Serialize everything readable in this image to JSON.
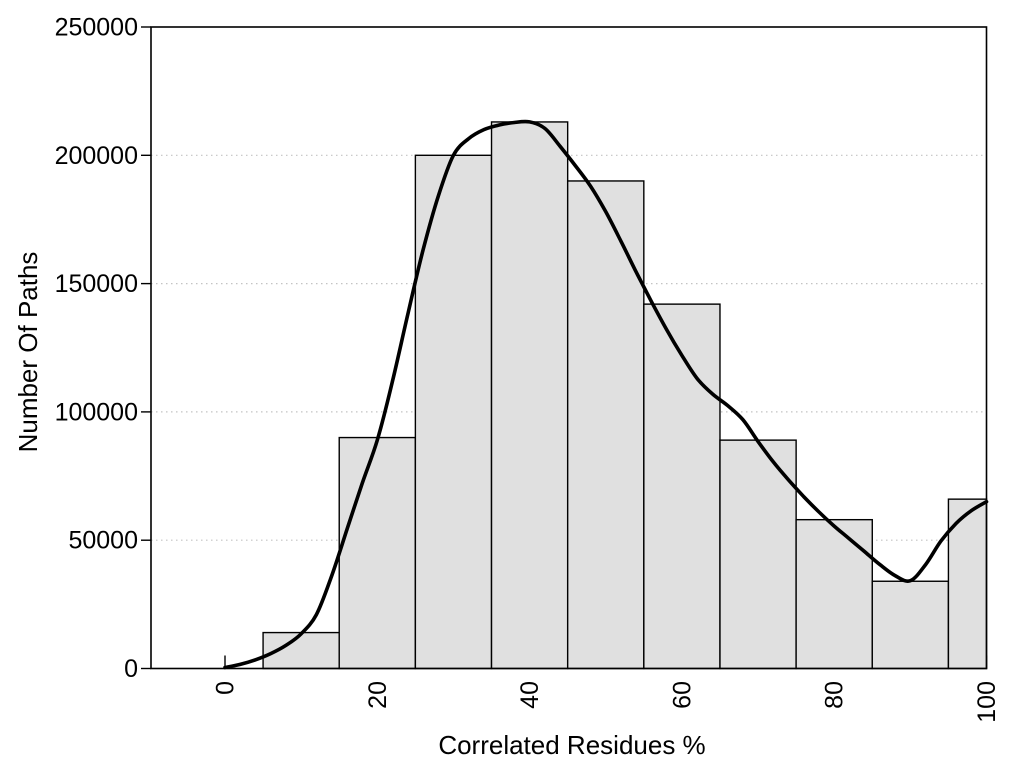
{
  "figure": {
    "background_color": "#ffffff",
    "axis_color": "#000000",
    "text_color": "#000000"
  },
  "chart_data": {
    "type": "bar",
    "subtype": "histogram-with-density-curve",
    "title": "",
    "xlabel": "Correlated Residues %",
    "ylabel": "Number Of Paths",
    "xlim": [
      -10,
      100
    ],
    "ylim": [
      0,
      250000
    ],
    "x_ticks": [
      0,
      20,
      40,
      60,
      80,
      100
    ],
    "x_tick_labels": [
      "0",
      "20",
      "40",
      "60",
      "80",
      "100"
    ],
    "y_ticks": [
      0,
      50000,
      100000,
      150000,
      200000,
      250000
    ],
    "y_tick_labels": [
      "0",
      "50000",
      "100000",
      "150000",
      "200000",
      "250000"
    ],
    "grid": "horizontal-dotted",
    "gridline_values": [
      50000,
      100000,
      150000,
      200000
    ],
    "gridline_color": "#c3c3c3",
    "legend": "none",
    "histogram": {
      "bar_fill": "#e0e0e0",
      "bar_stroke": "#000000",
      "bins": [
        [
          5,
          15
        ],
        [
          15,
          25
        ],
        [
          25,
          35
        ],
        [
          35,
          45
        ],
        [
          45,
          55
        ],
        [
          55,
          65
        ],
        [
          65,
          75
        ],
        [
          75,
          85
        ],
        [
          85,
          95
        ],
        [
          95,
          100
        ]
      ],
      "counts": [
        14000,
        90000,
        200000,
        213000,
        190000,
        142000,
        89000,
        58000,
        34000,
        66000
      ]
    },
    "density_curve": {
      "color": "#000000",
      "x": [
        0,
        2,
        4,
        6,
        8,
        10,
        12,
        14,
        16,
        18,
        20,
        22,
        24,
        26,
        28,
        30,
        32,
        34,
        36,
        38,
        40,
        42,
        44,
        46,
        48,
        50,
        52,
        54,
        56,
        58,
        60,
        62,
        64,
        66,
        68,
        70,
        72,
        74,
        76,
        78,
        80,
        82,
        84,
        86,
        88,
        90,
        92,
        94,
        96,
        98,
        100
      ],
      "y": [
        400,
        1600,
        3400,
        5800,
        9000,
        13500,
        21000,
        36000,
        54000,
        72000,
        89000,
        112000,
        138000,
        163000,
        184000,
        200000,
        206500,
        210000,
        211800,
        212800,
        213000,
        210500,
        203500,
        196000,
        188000,
        178000,
        166500,
        154500,
        143000,
        132000,
        122000,
        113000,
        107000,
        102500,
        97000,
        88500,
        80500,
        73500,
        67000,
        61000,
        55500,
        50500,
        45500,
        40500,
        36200,
        34200,
        40500,
        49600,
        56500,
        61500,
        65000
      ]
    }
  }
}
